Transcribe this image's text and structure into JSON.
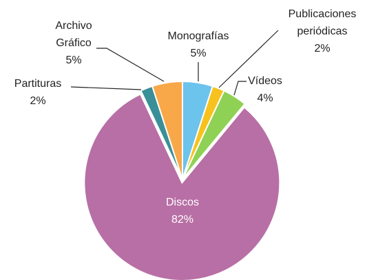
{
  "chart_data": {
    "type": "pie",
    "categories": [
      "Monografías",
      "Publicaciones periódicas",
      "Vídeos",
      "Discos",
      "Partituras",
      "Archivo Gráfico"
    ],
    "values": [
      5,
      2,
      4,
      82,
      2,
      5
    ],
    "value_labels": [
      "5%",
      "2%",
      "4%",
      "82%",
      "2%",
      "5%"
    ],
    "colors": [
      "#6cc3ec",
      "#f7c21e",
      "#8fd155",
      "#b86fa5",
      "#3a8f98",
      "#f8a848"
    ]
  }
}
